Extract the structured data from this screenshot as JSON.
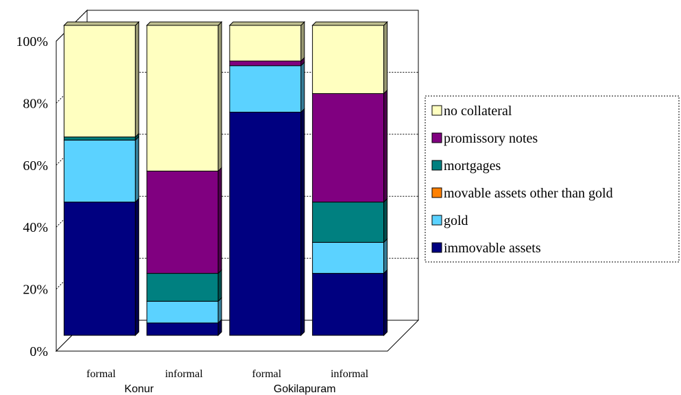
{
  "chart_data": {
    "type": "bar",
    "stacked": "percent",
    "three_d": true,
    "categories": [
      "formal",
      "informal",
      "formal",
      "informal"
    ],
    "groups": [
      {
        "label": "Konur",
        "categories": [
          0,
          1
        ]
      },
      {
        "label": "Gokilapuram",
        "categories": [
          2,
          3
        ]
      }
    ],
    "ylim": [
      0,
      100
    ],
    "yticks": [
      "0%",
      "20%",
      "40%",
      "60%",
      "80%",
      "100%"
    ],
    "grid": true,
    "legend_position": "right",
    "series": [
      {
        "name": "immovable assets",
        "color": "#000080",
        "values": [
          43,
          4,
          72,
          20
        ]
      },
      {
        "name": "gold",
        "color": "#5BD2FF",
        "values": [
          20,
          7,
          15,
          10
        ]
      },
      {
        "name": "movable assets other than gold",
        "color": "#FF8000",
        "values": [
          0,
          0,
          0,
          0
        ]
      },
      {
        "name": "mortgages",
        "color": "#008080",
        "values": [
          1,
          9,
          0,
          13
        ]
      },
      {
        "name": "promissory notes",
        "color": "#800080",
        "values": [
          0,
          33,
          1.5,
          35
        ]
      },
      {
        "name": "no collateral",
        "color": "#FFFFC0",
        "values": [
          36,
          47,
          11.5,
          22
        ]
      }
    ],
    "legend_order": [
      "no collateral",
      "promissory notes",
      "mortgages",
      "movable assets other than gold",
      "gold",
      "immovable assets"
    ]
  }
}
